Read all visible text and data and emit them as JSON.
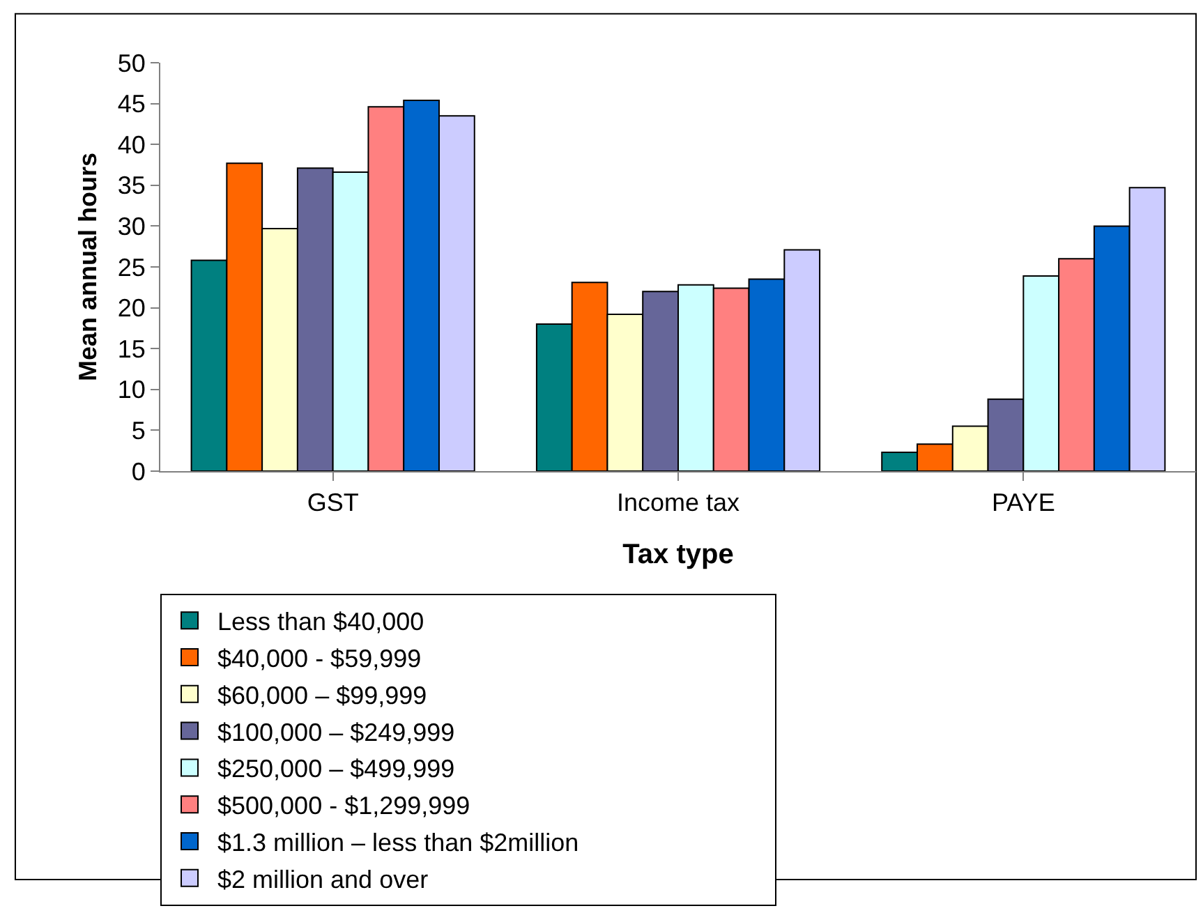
{
  "chart_data": {
    "type": "bar",
    "xlabel": "Tax type",
    "ylabel": "Mean annual hours",
    "categories": [
      "GST",
      "Income tax",
      "PAYE"
    ],
    "series": [
      {
        "name": "Less than $40,000",
        "color": "#008080",
        "values": [
          25.8,
          18.0,
          2.3
        ]
      },
      {
        "name": "$40,000 - $59,999",
        "color": "#ff6600",
        "values": [
          37.7,
          23.1,
          3.3
        ]
      },
      {
        "name": "$60,000 – $99,999",
        "color": "#ffffcc",
        "values": [
          29.7,
          19.2,
          5.5
        ]
      },
      {
        "name": "$100,000 – $249,999",
        "color": "#666699",
        "values": [
          37.1,
          22.0,
          8.8
        ]
      },
      {
        "name": "$250,000 – $499,999",
        "color": "#ccffff",
        "values": [
          36.6,
          22.8,
          23.9
        ]
      },
      {
        "name": "$500,000 - $1,299,999",
        "color": "#ff8080",
        "values": [
          44.6,
          22.4,
          26.0
        ]
      },
      {
        "name": "$1.3 million – less than $2million",
        "color": "#0066cc",
        "values": [
          45.4,
          23.5,
          30.0
        ]
      },
      {
        "name": "$2 million and over",
        "color": "#ccccff",
        "values": [
          43.5,
          27.1,
          34.7
        ]
      }
    ],
    "ylim": [
      0,
      50
    ],
    "yticks": [
      0,
      5,
      10,
      15,
      20,
      25,
      30,
      35,
      40,
      45,
      50
    ],
    "grid": false,
    "legend": "bottom"
  }
}
